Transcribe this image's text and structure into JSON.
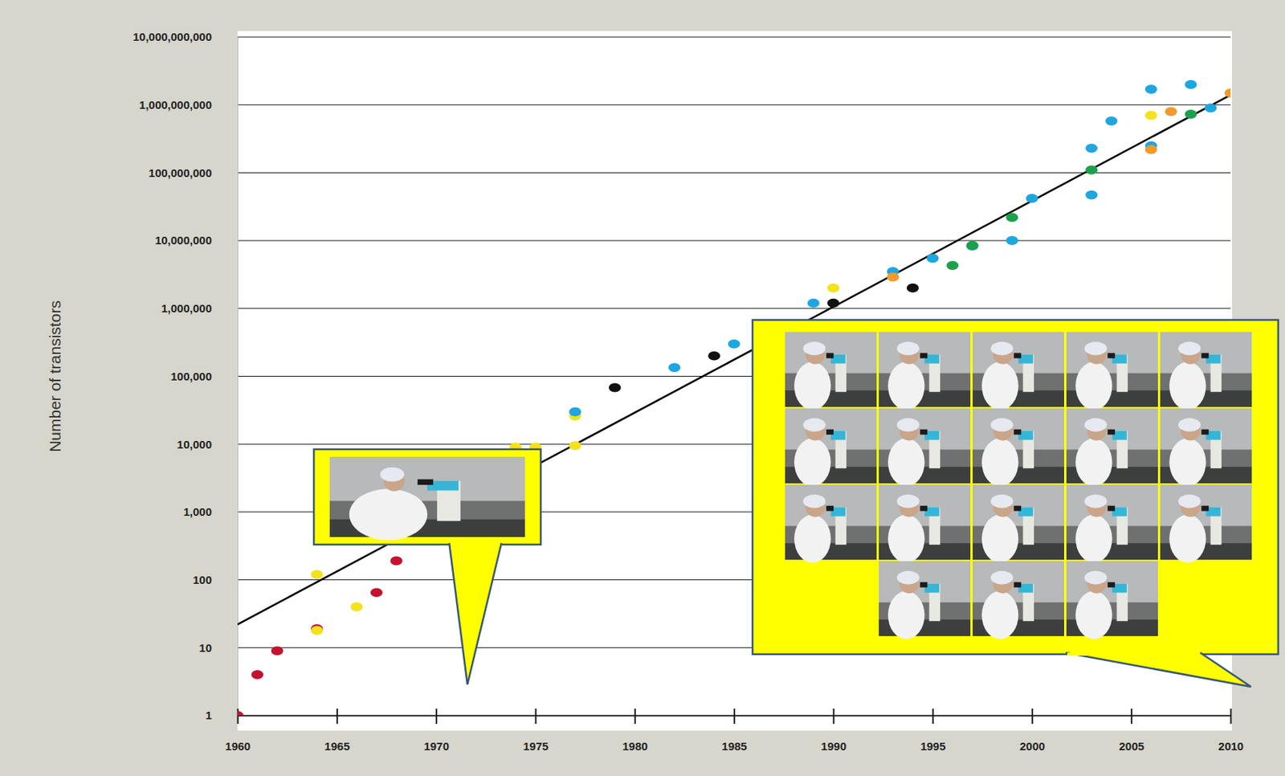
{
  "chart_data": {
    "type": "scatter",
    "log": "y",
    "grid": true,
    "y_label": "Number of transistors",
    "xlim": [
      1960,
      2010
    ],
    "ylim": [
      1,
      10000000000
    ],
    "xticks": [
      1960,
      1965,
      1970,
      1975,
      1980,
      1985,
      1990,
      1995,
      2000,
      2005,
      2010
    ],
    "yticks": [
      1,
      10,
      100,
      {
        "value": 1000,
        "label": "1,000"
      },
      {
        "value": 10000,
        "label": "10,000"
      },
      {
        "value": 100000,
        "label": "100,000"
      },
      {
        "value": 1000000,
        "label": "1,000,000"
      },
      {
        "value": 10000000,
        "label": "10,000,000"
      },
      {
        "value": 100000000,
        "label": "100,000,000"
      },
      {
        "value": 1000000000,
        "label": "1,000,000,000"
      },
      {
        "value": 10000000000,
        "label": "10,000,000,000"
      }
    ],
    "series": [
      {
        "color": "#c4122f",
        "marker": "circle",
        "x": [
          1960,
          1961,
          1962,
          1964,
          1967,
          1968
        ],
        "values": [
          1,
          4,
          9,
          19,
          65,
          190
        ]
      },
      {
        "color": "#f3e21c",
        "marker": "circle",
        "x": [
          1964,
          1964,
          1966,
          1974,
          1975,
          1977,
          1977,
          1990,
          2006
        ],
        "values": [
          120,
          18,
          40,
          9000,
          9000,
          26000,
          9500,
          2000000,
          700000000
        ]
      },
      {
        "color": "#1ea6e0",
        "marker": "circle",
        "x": [
          1977,
          1982,
          1985,
          1989,
          1993,
          1995,
          1997,
          1999,
          2000,
          2003,
          2003,
          2004,
          2006,
          2006,
          2008,
          2009
        ],
        "values": [
          30000,
          134000,
          300000,
          1200000,
          3500000,
          5500000,
          8300000,
          10000000,
          42000000,
          47000000,
          230000000,
          580000000,
          1700000000,
          250000000,
          2000000000,
          900000000
        ]
      },
      {
        "color": "#111111",
        "marker": "circle",
        "x": [
          1979,
          1984,
          1990,
          1994
        ],
        "values": [
          68000,
          200000,
          1200000,
          2000000
        ]
      },
      {
        "color": "#1ba14b",
        "marker": "circle",
        "x": [
          1996,
          1997,
          1999,
          2003,
          2008
        ],
        "values": [
          4300000,
          8500000,
          22000000,
          110000000,
          730000000
        ]
      },
      {
        "color": "#f29a2c",
        "marker": "circle",
        "x": [
          1993,
          2006,
          2007,
          2010
        ],
        "values": [
          2900000,
          220000000,
          800000000,
          1500000000
        ]
      },
      {
        "type": "line",
        "color": "#000000",
        "line_style": "solid",
        "x": [
          1960,
          2010
        ],
        "values": [
          22,
          1400000000
        ]
      }
    ]
  }
}
